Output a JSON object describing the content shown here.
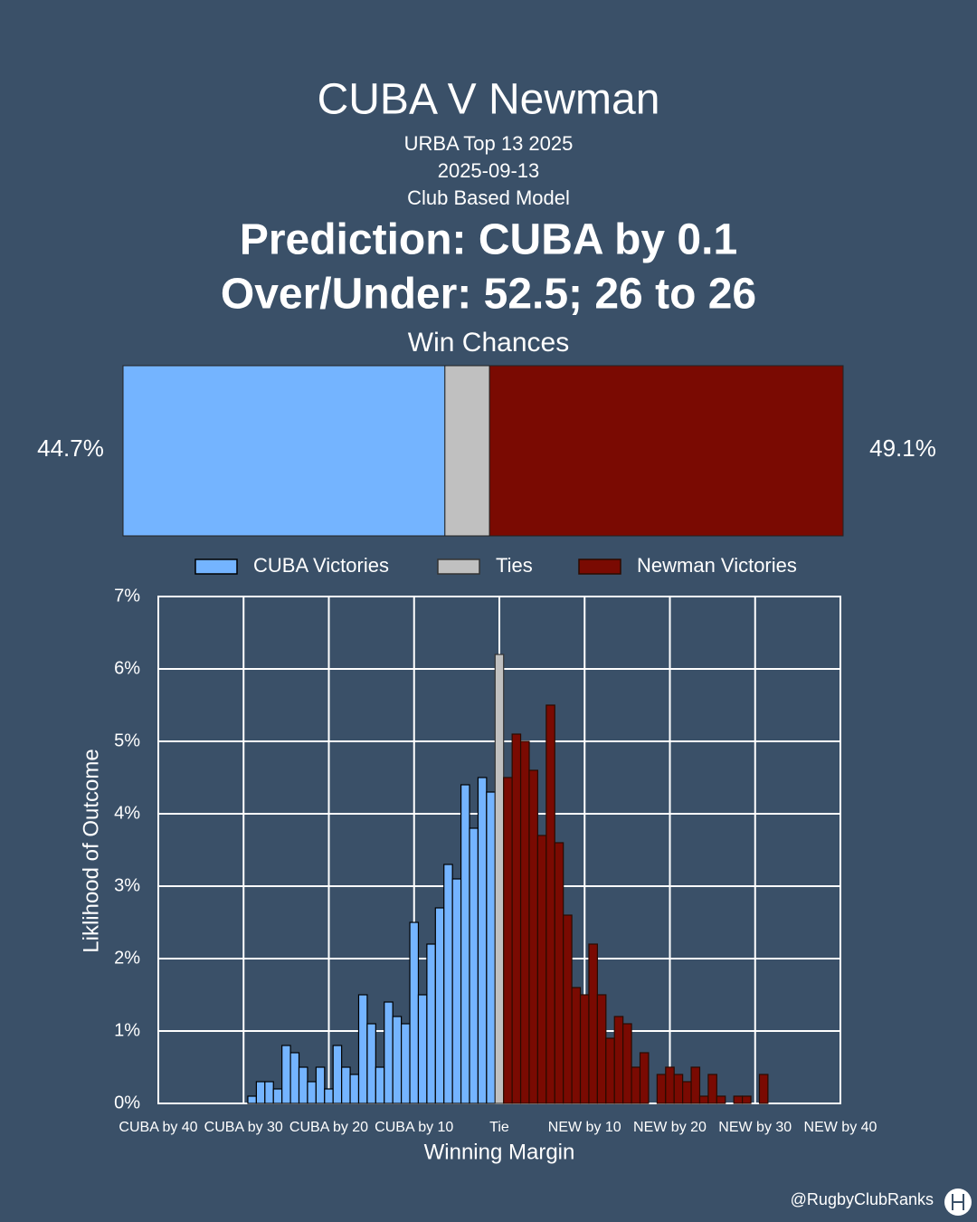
{
  "header": {
    "title": "CUBA V Newman",
    "subtitle_lines": [
      "URBA Top 13 2025",
      "2025-09-13",
      "Club Based Model"
    ],
    "prediction": "Prediction: CUBA by 0.1",
    "over_under": "Over/Under: 52.5; 26 to 26"
  },
  "chart_data": [
    {
      "type": "stacked_bar",
      "title": "Win Chances",
      "series": [
        {
          "color": "#74b4ff",
          "values": [
            44.7
          ],
          "value_labels": [
            "44.7%"
          ]
        },
        {
          "color": "#c0c0c0",
          "values": [
            6.2
          ]
        },
        {
          "color": "#7a0a02",
          "values": [
            49.1
          ],
          "value_labels": [
            "49.1%"
          ]
        }
      ]
    },
    {
      "type": "bar",
      "xlabel": "Winning Margin",
      "ylabel": "Liklihood of Outcome",
      "series": [
        {
          "name": "CUBA Victories",
          "color": "#74b4ff",
          "edge": "#000000",
          "x": [
            -29,
            -28,
            -27,
            -26,
            -25,
            -24,
            -23,
            -22,
            -21,
            -20,
            -19,
            -18,
            -17,
            -16,
            -15,
            -14,
            -13,
            -12,
            -11,
            -10,
            -9,
            -8,
            -7,
            -6,
            -5,
            -4,
            -3,
            -2,
            -1
          ],
          "values": [
            0.1,
            0.3,
            0.3,
            0.2,
            0.8,
            0.7,
            0.5,
            0.3,
            0.5,
            0.2,
            0.8,
            0.5,
            0.4,
            1.5,
            1.1,
            0.5,
            1.4,
            1.2,
            1.1,
            2.5,
            1.5,
            2.2,
            2.7,
            3.3,
            3.1,
            4.4,
            3.8,
            4.5,
            4.3
          ]
        },
        {
          "name": "Ties",
          "color": "#c0c0c0",
          "edge": "#333333",
          "x": [
            0
          ],
          "values": [
            6.2
          ]
        },
        {
          "name": "Newman Victories",
          "color": "#7a0a02",
          "edge": "#2a0a00",
          "x": [
            1,
            2,
            3,
            4,
            5,
            6,
            7,
            8,
            9,
            10,
            11,
            12,
            13,
            14,
            15,
            16,
            17,
            19,
            20,
            21,
            22,
            23,
            24,
            25,
            26,
            28,
            29,
            31
          ],
          "values": [
            4.5,
            5.1,
            5.0,
            4.6,
            3.7,
            5.5,
            3.6,
            2.6,
            1.6,
            1.5,
            2.2,
            1.5,
            0.9,
            1.2,
            1.1,
            0.5,
            0.7,
            0.4,
            0.5,
            0.4,
            0.3,
            0.5,
            0.1,
            0.4,
            0.1,
            0.1,
            0.1,
            0.4
          ]
        }
      ],
      "xlim": [
        -40,
        40
      ],
      "xticks": [
        {
          "value": -40,
          "label": "CUBA by 40"
        },
        {
          "value": -30,
          "label": "CUBA by 30"
        },
        {
          "value": -20,
          "label": "CUBA by 20"
        },
        {
          "value": -10,
          "label": "CUBA by 10"
        },
        {
          "value": 0,
          "label": "Tie"
        },
        {
          "value": 10,
          "label": "NEW by 10"
        },
        {
          "value": 20,
          "label": "NEW by 20"
        },
        {
          "value": 30,
          "label": "NEW by 30"
        },
        {
          "value": 40,
          "label": "NEW by 40"
        }
      ],
      "ylim": [
        0,
        7
      ],
      "yticks": [
        {
          "value": 0,
          "label": "0%"
        },
        {
          "value": 1,
          "label": "1%"
        },
        {
          "value": 2,
          "label": "2%"
        },
        {
          "value": 3,
          "label": "3%"
        },
        {
          "value": 4,
          "label": "4%"
        },
        {
          "value": 5,
          "label": "5%"
        },
        {
          "value": 6,
          "label": "6%"
        },
        {
          "value": 7,
          "label": "7%"
        }
      ],
      "grid": true
    }
  ],
  "footer": {
    "credit": "@RugbyClubRanks"
  }
}
